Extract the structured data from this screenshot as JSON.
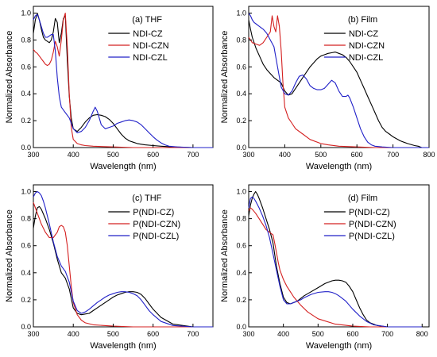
{
  "chart_data": [
    {
      "type": "line",
      "panel_title": "(a) THF",
      "xlabel": "Wavelength (nm)",
      "ylabel": "Normalized Absorbance",
      "xlim": [
        300,
        750
      ],
      "ylim": [
        0.0,
        1.05
      ],
      "xticks": [
        300,
        400,
        500,
        600,
        700
      ],
      "yticks": [
        0.0,
        0.2,
        0.4,
        0.6,
        0.8,
        1.0
      ],
      "legend_position": "top-right",
      "series": [
        {
          "name": "NDI-CZ",
          "color": "#000000",
          "x": [
            300,
            305,
            310,
            315,
            320,
            325,
            330,
            335,
            340,
            345,
            350,
            355,
            360,
            365,
            370,
            375,
            380,
            385,
            390,
            395,
            400,
            410,
            420,
            430,
            440,
            450,
            460,
            470,
            480,
            490,
            500,
            510,
            520,
            530,
            540,
            550,
            560,
            570,
            580,
            600,
            620,
            650,
            700,
            750
          ],
          "y": [
            0.85,
            0.95,
            1.0,
            0.95,
            0.88,
            0.82,
            0.8,
            0.79,
            0.78,
            0.8,
            0.86,
            0.96,
            0.93,
            0.78,
            0.85,
            0.96,
            0.98,
            0.65,
            0.38,
            0.22,
            0.14,
            0.12,
            0.15,
            0.19,
            0.22,
            0.24,
            0.245,
            0.24,
            0.23,
            0.21,
            0.18,
            0.14,
            0.1,
            0.07,
            0.05,
            0.04,
            0.03,
            0.025,
            0.02,
            0.015,
            0.01,
            0.005,
            0.0,
            0.0
          ]
        },
        {
          "name": "NDI-CZN",
          "color": "#d42020",
          "x": [
            300,
            305,
            310,
            315,
            320,
            325,
            330,
            335,
            340,
            345,
            350,
            355,
            360,
            365,
            370,
            375,
            380,
            385,
            390,
            395,
            400,
            410,
            420,
            430,
            450,
            500,
            550,
            600,
            650,
            700,
            750
          ],
          "y": [
            0.73,
            0.71,
            0.7,
            0.68,
            0.66,
            0.64,
            0.62,
            0.61,
            0.62,
            0.65,
            0.71,
            0.79,
            0.75,
            0.68,
            0.8,
            0.95,
            1.0,
            0.75,
            0.4,
            0.15,
            0.06,
            0.03,
            0.02,
            0.015,
            0.01,
            0.005,
            0.0,
            0.0,
            0.0,
            0.0,
            0.0
          ]
        },
        {
          "name": "NDI-CZL",
          "color": "#2020c8",
          "x": [
            300,
            305,
            310,
            315,
            320,
            325,
            330,
            335,
            340,
            345,
            350,
            355,
            360,
            365,
            370,
            380,
            390,
            400,
            410,
            420,
            430,
            440,
            450,
            455,
            460,
            465,
            470,
            480,
            490,
            500,
            510,
            520,
            530,
            540,
            550,
            560,
            570,
            580,
            590,
            600,
            610,
            620,
            630,
            640,
            660,
            700,
            750
          ],
          "y": [
            0.95,
            0.98,
            0.99,
            0.95,
            0.9,
            0.85,
            0.82,
            0.82,
            0.83,
            0.84,
            0.84,
            0.72,
            0.52,
            0.38,
            0.3,
            0.26,
            0.22,
            0.14,
            0.11,
            0.12,
            0.15,
            0.2,
            0.27,
            0.3,
            0.27,
            0.22,
            0.17,
            0.14,
            0.15,
            0.16,
            0.18,
            0.19,
            0.2,
            0.205,
            0.2,
            0.19,
            0.17,
            0.14,
            0.11,
            0.08,
            0.055,
            0.035,
            0.02,
            0.01,
            0.005,
            0.0,
            0.0
          ]
        }
      ]
    },
    {
      "type": "line",
      "panel_title": "(b) Film",
      "xlabel": "Wavelength (nm)",
      "ylabel": "Normalized Absorbance",
      "xlim": [
        300,
        800
      ],
      "ylim": [
        0.0,
        1.05
      ],
      "xticks": [
        300,
        400,
        500,
        600,
        700,
        800
      ],
      "yticks": [
        0.0,
        0.2,
        0.4,
        0.6,
        0.8,
        1.0
      ],
      "legend_position": "top-right",
      "series": [
        {
          "name": "NDI-CZ",
          "color": "#000000",
          "x": [
            300,
            305,
            310,
            320,
            330,
            340,
            350,
            360,
            370,
            380,
            390,
            400,
            410,
            420,
            430,
            440,
            450,
            460,
            470,
            480,
            490,
            500,
            510,
            520,
            530,
            540,
            550,
            560,
            570,
            580,
            590,
            600,
            610,
            620,
            630,
            640,
            650,
            660,
            670,
            680,
            690,
            700,
            720,
            740,
            760,
            770,
            780
          ],
          "y": [
            0.95,
            0.88,
            0.82,
            0.74,
            0.68,
            0.62,
            0.58,
            0.55,
            0.52,
            0.5,
            0.48,
            0.42,
            0.39,
            0.4,
            0.44,
            0.48,
            0.52,
            0.56,
            0.6,
            0.63,
            0.66,
            0.68,
            0.69,
            0.7,
            0.705,
            0.71,
            0.7,
            0.69,
            0.67,
            0.64,
            0.6,
            0.56,
            0.5,
            0.44,
            0.38,
            0.32,
            0.26,
            0.2,
            0.15,
            0.12,
            0.1,
            0.08,
            0.05,
            0.03,
            0.015,
            0.01,
            0.0
          ]
        },
        {
          "name": "NDI-CZN",
          "color": "#d42020",
          "x": [
            300,
            305,
            310,
            320,
            330,
            340,
            350,
            360,
            365,
            370,
            375,
            380,
            385,
            390,
            395,
            400,
            410,
            420,
            430,
            450,
            470,
            500,
            520,
            550,
            600,
            650,
            700,
            750,
            800
          ],
          "y": [
            0.82,
            0.8,
            0.78,
            0.77,
            0.76,
            0.78,
            0.82,
            0.86,
            0.98,
            0.9,
            0.86,
            0.98,
            0.9,
            0.72,
            0.48,
            0.3,
            0.22,
            0.18,
            0.14,
            0.1,
            0.06,
            0.03,
            0.02,
            0.01,
            0.005,
            0.0,
            0.0,
            0.0,
            0.0
          ]
        },
        {
          "name": "NDI-CZL",
          "color": "#2020c8",
          "x": [
            300,
            305,
            310,
            315,
            320,
            330,
            340,
            350,
            360,
            370,
            380,
            390,
            400,
            410,
            420,
            430,
            440,
            450,
            460,
            470,
            480,
            490,
            500,
            510,
            520,
            530,
            540,
            550,
            560,
            570,
            575,
            580,
            590,
            600,
            610,
            620,
            630,
            640,
            650,
            670,
            700,
            750,
            800
          ],
          "y": [
            1.0,
            0.98,
            0.95,
            0.93,
            0.92,
            0.9,
            0.88,
            0.85,
            0.8,
            0.75,
            0.6,
            0.45,
            0.4,
            0.39,
            0.42,
            0.48,
            0.53,
            0.54,
            0.51,
            0.46,
            0.44,
            0.43,
            0.43,
            0.44,
            0.47,
            0.5,
            0.48,
            0.42,
            0.38,
            0.38,
            0.39,
            0.37,
            0.3,
            0.22,
            0.14,
            0.08,
            0.04,
            0.02,
            0.01,
            0.005,
            0.0,
            0.0,
            0.0
          ]
        }
      ]
    },
    {
      "type": "line",
      "panel_title": "(c) THF",
      "xlabel": "Wavelength (nm)",
      "ylabel": "Normalized Absorbance",
      "xlim": [
        300,
        750
      ],
      "ylim": [
        0.0,
        1.05
      ],
      "xticks": [
        300,
        400,
        500,
        600,
        700
      ],
      "yticks": [
        0.0,
        0.2,
        0.4,
        0.6,
        0.8,
        1.0
      ],
      "legend_position": "top-right",
      "series": [
        {
          "name": "P(NDI-CZ)",
          "color": "#000000",
          "x": [
            300,
            305,
            310,
            315,
            320,
            330,
            340,
            350,
            360,
            370,
            380,
            390,
            400,
            410,
            420,
            430,
            440,
            450,
            460,
            470,
            480,
            490,
            500,
            510,
            520,
            530,
            540,
            550,
            560,
            570,
            580,
            590,
            600,
            620,
            650,
            700,
            750
          ],
          "y": [
            0.73,
            0.82,
            0.88,
            0.89,
            0.87,
            0.8,
            0.72,
            0.62,
            0.5,
            0.4,
            0.36,
            0.28,
            0.14,
            0.1,
            0.09,
            0.095,
            0.1,
            0.12,
            0.14,
            0.16,
            0.18,
            0.2,
            0.22,
            0.235,
            0.245,
            0.255,
            0.26,
            0.26,
            0.255,
            0.24,
            0.21,
            0.17,
            0.13,
            0.07,
            0.02,
            0.0,
            0.0
          ]
        },
        {
          "name": "P(NDI-CZN)",
          "color": "#d42020",
          "x": [
            300,
            305,
            310,
            315,
            320,
            330,
            340,
            350,
            360,
            365,
            370,
            375,
            380,
            385,
            390,
            395,
            400,
            410,
            420,
            430,
            450,
            500,
            550,
            600,
            650,
            700,
            750
          ],
          "y": [
            0.92,
            0.88,
            0.84,
            0.8,
            0.76,
            0.7,
            0.66,
            0.66,
            0.7,
            0.74,
            0.75,
            0.74,
            0.7,
            0.6,
            0.45,
            0.3,
            0.18,
            0.09,
            0.05,
            0.03,
            0.015,
            0.005,
            0.0,
            0.0,
            0.0,
            0.0,
            0.0
          ]
        },
        {
          "name": "P(NDI-CZL)",
          "color": "#2020c8",
          "x": [
            300,
            305,
            310,
            315,
            320,
            325,
            330,
            340,
            350,
            360,
            370,
            380,
            390,
            400,
            410,
            420,
            430,
            440,
            450,
            460,
            470,
            480,
            490,
            500,
            510,
            520,
            530,
            540,
            550,
            560,
            570,
            580,
            590,
            600,
            620,
            650,
            700,
            750
          ],
          "y": [
            0.96,
            0.99,
            1.0,
            0.99,
            0.97,
            0.93,
            0.88,
            0.76,
            0.63,
            0.52,
            0.45,
            0.41,
            0.33,
            0.19,
            0.12,
            0.1,
            0.11,
            0.13,
            0.155,
            0.18,
            0.2,
            0.22,
            0.235,
            0.245,
            0.255,
            0.26,
            0.26,
            0.255,
            0.245,
            0.23,
            0.2,
            0.16,
            0.12,
            0.09,
            0.04,
            0.01,
            0.0,
            0.0
          ]
        }
      ]
    },
    {
      "type": "line",
      "panel_title": "(d) Film",
      "xlabel": "Wavelength (nm)",
      "ylabel": "Normalized Absorbance",
      "xlim": [
        300,
        820
      ],
      "ylim": [
        0.0,
        1.05
      ],
      "xticks": [
        300,
        400,
        500,
        600,
        700,
        800
      ],
      "yticks": [
        0.0,
        0.2,
        0.4,
        0.6,
        0.8,
        1.0
      ],
      "legend_position": "top-right",
      "series": [
        {
          "name": "P(NDI-CZ)",
          "color": "#000000",
          "x": [
            300,
            305,
            310,
            315,
            320,
            325,
            330,
            340,
            350,
            360,
            370,
            380,
            390,
            400,
            410,
            420,
            430,
            440,
            450,
            460,
            480,
            500,
            520,
            540,
            550,
            560,
            570,
            580,
            590,
            600,
            610,
            620,
            630,
            640,
            650,
            670,
            700,
            750,
            800
          ],
          "y": [
            0.82,
            0.9,
            0.95,
            0.98,
            1.0,
            0.98,
            0.95,
            0.88,
            0.8,
            0.72,
            0.62,
            0.45,
            0.32,
            0.22,
            0.18,
            0.17,
            0.18,
            0.19,
            0.21,
            0.23,
            0.26,
            0.29,
            0.32,
            0.34,
            0.345,
            0.345,
            0.34,
            0.33,
            0.3,
            0.26,
            0.2,
            0.14,
            0.09,
            0.05,
            0.03,
            0.01,
            0.0,
            0.0,
            0.0
          ]
        },
        {
          "name": "P(NDI-CZN)",
          "color": "#d42020",
          "x": [
            300,
            305,
            310,
            320,
            330,
            340,
            350,
            360,
            370,
            375,
            380,
            385,
            390,
            400,
            410,
            420,
            430,
            450,
            470,
            500,
            550,
            600,
            650,
            700,
            750,
            800
          ],
          "y": [
            0.86,
            0.88,
            0.87,
            0.84,
            0.8,
            0.76,
            0.72,
            0.7,
            0.68,
            0.62,
            0.55,
            0.48,
            0.42,
            0.35,
            0.3,
            0.26,
            0.22,
            0.16,
            0.11,
            0.06,
            0.02,
            0.005,
            0.0,
            0.0,
            0.0,
            0.0
          ]
        },
        {
          "name": "P(NDI-CZL)",
          "color": "#2020c8",
          "x": [
            300,
            305,
            310,
            315,
            320,
            330,
            340,
            350,
            360,
            370,
            380,
            390,
            400,
            410,
            420,
            430,
            440,
            450,
            460,
            480,
            500,
            520,
            530,
            540,
            550,
            560,
            570,
            580,
            590,
            600,
            620,
            640,
            660,
            700,
            750,
            800
          ],
          "y": [
            0.88,
            0.95,
            0.96,
            0.95,
            0.93,
            0.88,
            0.82,
            0.75,
            0.66,
            0.54,
            0.42,
            0.3,
            0.2,
            0.17,
            0.17,
            0.18,
            0.19,
            0.2,
            0.215,
            0.24,
            0.255,
            0.26,
            0.26,
            0.255,
            0.245,
            0.23,
            0.21,
            0.19,
            0.16,
            0.13,
            0.08,
            0.04,
            0.015,
            0.0,
            0.0,
            0.0
          ]
        }
      ]
    }
  ]
}
